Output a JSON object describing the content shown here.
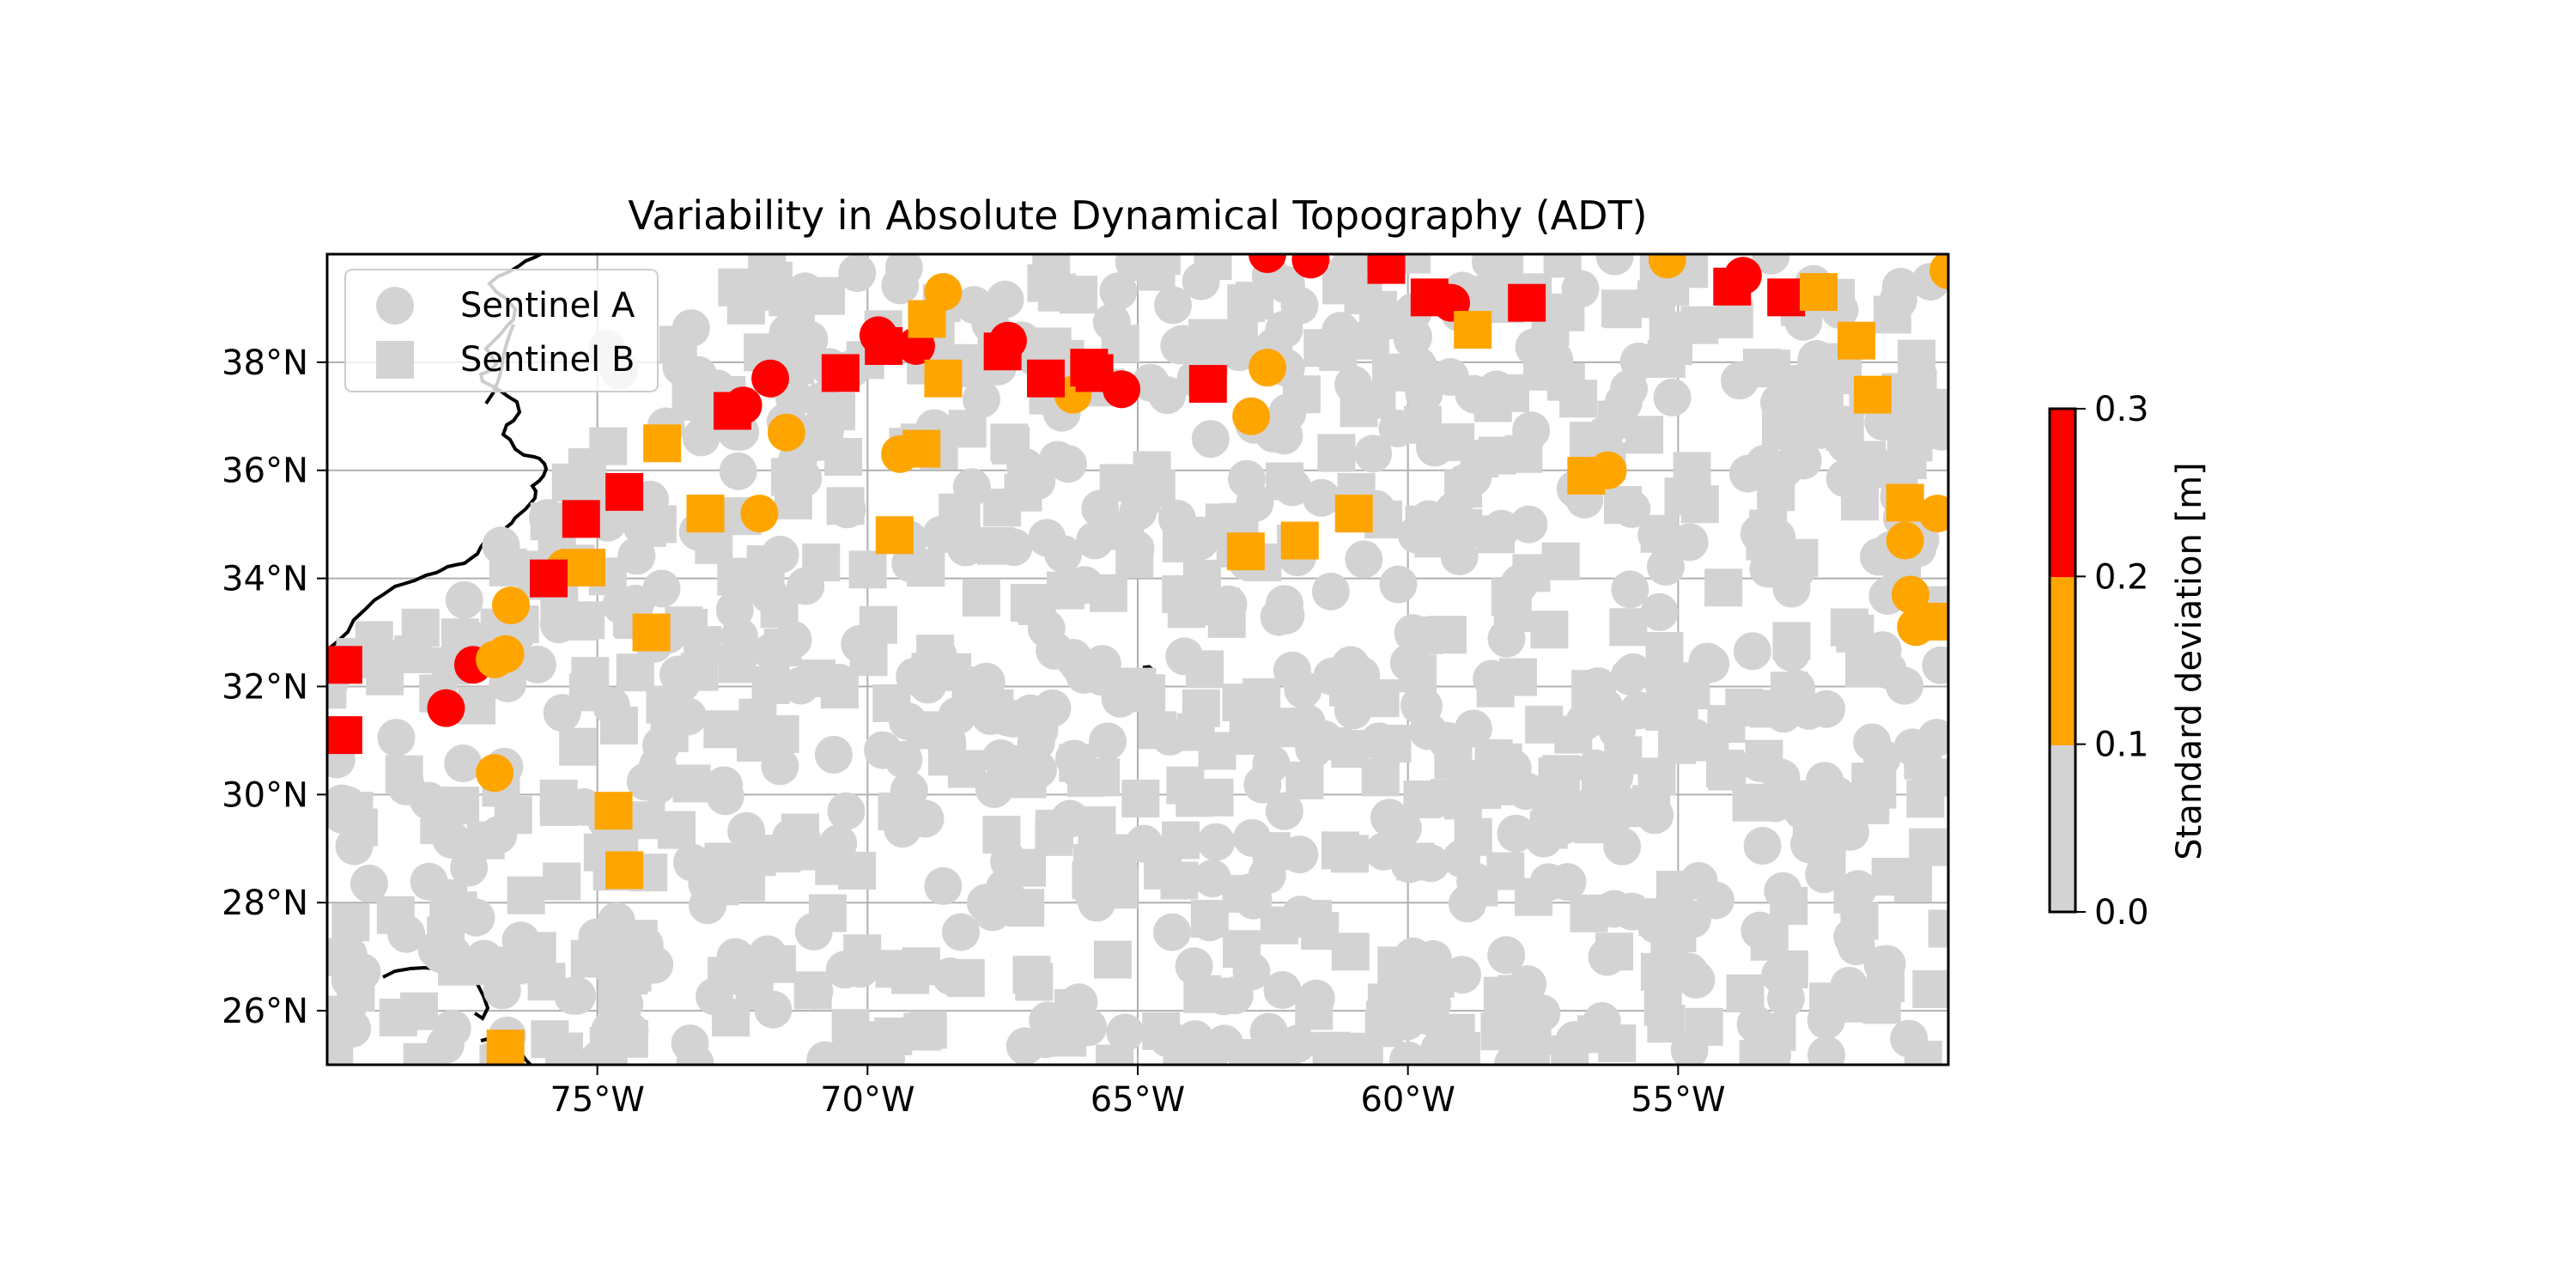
{
  "chart_data": {
    "type": "scatter",
    "title": "Variability in Absolute Dynamical Topography (ADT)",
    "xlabel": "",
    "ylabel": "",
    "xlim": [
      -80,
      -50
    ],
    "ylim": [
      25,
      40
    ],
    "grid": true,
    "x_ticks": [
      -75,
      -70,
      -65,
      -60,
      -55
    ],
    "x_tick_labels": [
      "75°W",
      "70°W",
      "65°W",
      "60°W",
      "55°W"
    ],
    "y_ticks": [
      26,
      28,
      30,
      32,
      34,
      36,
      38
    ],
    "y_tick_labels": [
      "26°N",
      "28°N",
      "30°N",
      "32°N",
      "34°N",
      "36°N",
      "38°N"
    ],
    "legend": {
      "placement": "top-left",
      "entries": [
        {
          "label": "Sentinel A",
          "marker": "circle"
        },
        {
          "label": "Sentinel B",
          "marker": "square"
        }
      ]
    },
    "colorbar": {
      "label": "Standard deviation [m]",
      "bounds": [
        0.0,
        0.1,
        0.2,
        0.3
      ],
      "tick_labels": [
        "0.0",
        "0.1",
        "0.2",
        "0.3"
      ],
      "colors": [
        "#d3d3d3",
        "#ffa500",
        "#ff0000"
      ]
    },
    "series": [
      {
        "name": "Sentinel A",
        "marker": "circle",
        "highlight_points": [
          {
            "x": -77.3,
            "y": 32.4,
            "v": 0.25
          },
          {
            "x": -77.8,
            "y": 31.6,
            "v": 0.25
          },
          {
            "x": -72.3,
            "y": 37.2,
            "v": 0.25
          },
          {
            "x": -71.8,
            "y": 37.7,
            "v": 0.25
          },
          {
            "x": -69.8,
            "y": 38.5,
            "v": 0.25
          },
          {
            "x": -69.1,
            "y": 38.3,
            "v": 0.25
          },
          {
            "x": -67.4,
            "y": 38.4,
            "v": 0.25
          },
          {
            "x": -65.3,
            "y": 37.5,
            "v": 0.25
          },
          {
            "x": -61.8,
            "y": 39.9,
            "v": 0.25
          },
          {
            "x": -59.2,
            "y": 39.1,
            "v": 0.25
          },
          {
            "x": -53.8,
            "y": 39.6,
            "v": 0.25
          },
          {
            "x": -62.6,
            "y": 40.0,
            "v": 0.25
          },
          {
            "x": -76.6,
            "y": 33.5,
            "v": 0.15
          },
          {
            "x": -76.7,
            "y": 32.6,
            "v": 0.15
          },
          {
            "x": -76.9,
            "y": 32.5,
            "v": 0.15
          },
          {
            "x": -76.9,
            "y": 30.4,
            "v": 0.15
          },
          {
            "x": -75.6,
            "y": 34.2,
            "v": 0.15
          },
          {
            "x": -72.0,
            "y": 35.2,
            "v": 0.15
          },
          {
            "x": -71.5,
            "y": 36.7,
            "v": 0.15
          },
          {
            "x": -69.4,
            "y": 36.3,
            "v": 0.15
          },
          {
            "x": -68.6,
            "y": 39.3,
            "v": 0.15
          },
          {
            "x": -62.9,
            "y": 37.0,
            "v": 0.15
          },
          {
            "x": -62.6,
            "y": 37.9,
            "v": 0.15
          },
          {
            "x": -56.3,
            "y": 36.0,
            "v": 0.15
          },
          {
            "x": -55.2,
            "y": 39.9,
            "v": 0.15
          },
          {
            "x": -50.8,
            "y": 34.7,
            "v": 0.15
          },
          {
            "x": -50.2,
            "y": 35.2,
            "v": 0.15
          },
          {
            "x": -50.7,
            "y": 33.7,
            "v": 0.15
          },
          {
            "x": -50.6,
            "y": 33.1,
            "v": 0.15
          },
          {
            "x": -50.0,
            "y": 39.7,
            "v": 0.15
          },
          {
            "x": -66.2,
            "y": 37.4,
            "v": 0.15
          }
        ],
        "background_points_v": 0.05
      },
      {
        "name": "Sentinel B",
        "marker": "square",
        "highlight_points": [
          {
            "x": -79.7,
            "y": 32.4,
            "v": 0.25
          },
          {
            "x": -79.7,
            "y": 31.1,
            "v": 0.25
          },
          {
            "x": -75.3,
            "y": 35.1,
            "v": 0.25
          },
          {
            "x": -75.9,
            "y": 34.0,
            "v": 0.25
          },
          {
            "x": -74.5,
            "y": 35.6,
            "v": 0.25
          },
          {
            "x": -72.5,
            "y": 37.1,
            "v": 0.25
          },
          {
            "x": -70.5,
            "y": 37.8,
            "v": 0.25
          },
          {
            "x": -69.7,
            "y": 38.3,
            "v": 0.25
          },
          {
            "x": -67.5,
            "y": 38.2,
            "v": 0.25
          },
          {
            "x": -66.7,
            "y": 37.7,
            "v": 0.25
          },
          {
            "x": -65.9,
            "y": 37.9,
            "v": 0.25
          },
          {
            "x": -65.8,
            "y": 37.8,
            "v": 0.25
          },
          {
            "x": -63.7,
            "y": 37.6,
            "v": 0.25
          },
          {
            "x": -60.4,
            "y": 39.8,
            "v": 0.25
          },
          {
            "x": -59.6,
            "y": 39.2,
            "v": 0.25
          },
          {
            "x": -57.8,
            "y": 39.1,
            "v": 0.25
          },
          {
            "x": -54.0,
            "y": 39.4,
            "v": 0.25
          },
          {
            "x": -53.0,
            "y": 39.2,
            "v": 0.25
          },
          {
            "x": -76.7,
            "y": 25.3,
            "v": 0.15
          },
          {
            "x": -75.2,
            "y": 34.2,
            "v": 0.15
          },
          {
            "x": -74.0,
            "y": 33.0,
            "v": 0.15
          },
          {
            "x": -73.8,
            "y": 36.5,
            "v": 0.15
          },
          {
            "x": -73.0,
            "y": 35.2,
            "v": 0.15
          },
          {
            "x": -69.5,
            "y": 34.8,
            "v": 0.15
          },
          {
            "x": -69.0,
            "y": 36.4,
            "v": 0.15
          },
          {
            "x": -68.6,
            "y": 37.7,
            "v": 0.15
          },
          {
            "x": -68.9,
            "y": 38.8,
            "v": 0.15
          },
          {
            "x": -63.0,
            "y": 34.5,
            "v": 0.15
          },
          {
            "x": -62.0,
            "y": 34.7,
            "v": 0.15
          },
          {
            "x": -61.0,
            "y": 35.2,
            "v": 0.15
          },
          {
            "x": -58.8,
            "y": 38.6,
            "v": 0.15
          },
          {
            "x": -56.7,
            "y": 35.9,
            "v": 0.15
          },
          {
            "x": -52.4,
            "y": 39.3,
            "v": 0.15
          },
          {
            "x": -51.7,
            "y": 38.4,
            "v": 0.15
          },
          {
            "x": -51.4,
            "y": 37.4,
            "v": 0.15
          },
          {
            "x": -50.8,
            "y": 35.4,
            "v": 0.15
          },
          {
            "x": -50.3,
            "y": 33.2,
            "v": 0.15
          },
          {
            "x": -74.7,
            "y": 29.7,
            "v": 0.15
          },
          {
            "x": -74.5,
            "y": 28.6,
            "v": 0.15
          }
        ],
        "background_points_v": 0.05
      }
    ]
  }
}
